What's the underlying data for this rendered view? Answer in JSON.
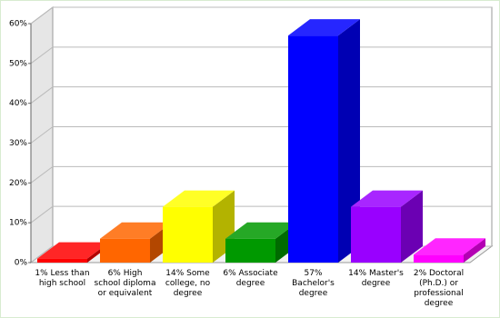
{
  "chart_data": {
    "type": "bar3d",
    "categories": [
      "1% Less than high school",
      "6% High school diploma or equivalent",
      "14% Some college, no degree",
      "6% Associate degree",
      "57% Bachelor's degree",
      "14% Master's degree",
      "2% Doctoral (Ph.D.) or professional degree"
    ],
    "values": [
      1,
      6,
      14,
      6,
      57,
      14,
      2
    ],
    "colors": [
      "#ff0000",
      "#ff6600",
      "#ffff00",
      "#009900",
      "#0000ff",
      "#9900ff",
      "#ff00ff"
    ],
    "ylim": [
      0,
      60
    ],
    "yticks": [
      {
        "value": 0,
        "label": "0%"
      },
      {
        "value": 10,
        "label": "10%"
      },
      {
        "value": 20,
        "label": "20%"
      },
      {
        "value": 30,
        "label": "30%"
      },
      {
        "value": 40,
        "label": "40%"
      },
      {
        "value": 50,
        "label": "50%"
      },
      {
        "value": 60,
        "label": "60%"
      }
    ],
    "grid": true
  }
}
